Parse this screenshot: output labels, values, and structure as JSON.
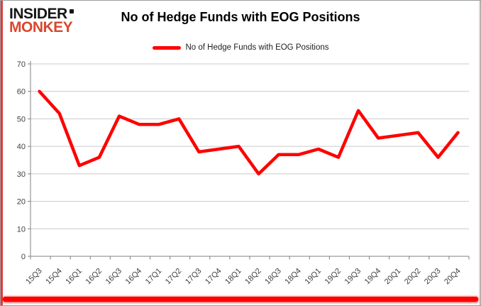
{
  "logo": {
    "line1": "INSIDER",
    "line2": "MONKEY"
  },
  "header": {
    "title": "No of Hedge Funds with EOG Positions"
  },
  "legend": {
    "label": "No of Hedge Funds with EOG Positions"
  },
  "colors": {
    "series": "#FF0000",
    "accent_bar": "#FF0000",
    "logo_monkey": "#D9472E",
    "grid": "#C9C9C9",
    "axis": "#808080",
    "tick_label": "#404040"
  },
  "chart_data": {
    "type": "line",
    "title": "No of Hedge Funds with EOG Positions",
    "categories": [
      "15Q3",
      "15Q4",
      "16Q1",
      "16Q2",
      "16Q3",
      "16Q4",
      "17Q1",
      "17Q2",
      "17Q3",
      "17Q4",
      "18Q1",
      "18Q2",
      "18Q3",
      "18Q4",
      "19Q1",
      "19Q2",
      "19Q3",
      "19Q4",
      "20Q1",
      "20Q2",
      "20Q3",
      "20Q4"
    ],
    "series": [
      {
        "name": "No of Hedge Funds with EOG Positions",
        "color": "#FF0000",
        "values": [
          60,
          52,
          33,
          36,
          51,
          48,
          48,
          50,
          38,
          39,
          40,
          30,
          37,
          37,
          39,
          36,
          53,
          43,
          44,
          45,
          36,
          45
        ]
      }
    ],
    "xlabel": "",
    "ylabel": "",
    "ylim": [
      0,
      70
    ],
    "yticks": [
      0,
      10,
      20,
      30,
      40,
      50,
      60,
      70
    ],
    "grid": true,
    "legend_position": "top-center"
  }
}
